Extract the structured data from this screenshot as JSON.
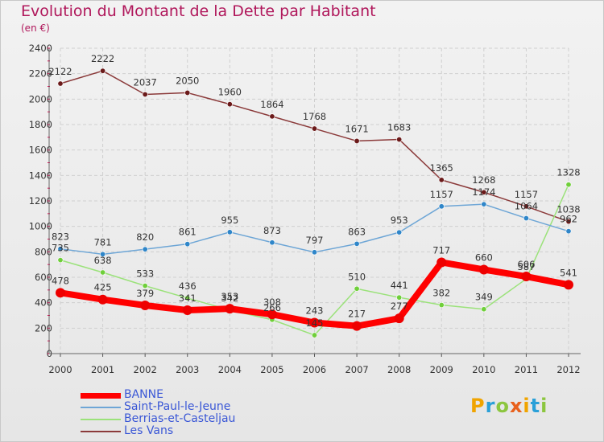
{
  "title": "Evolution du Montant de la Dette par Habitant",
  "subtitle": "(en €)",
  "logo": {
    "letters": [
      "P",
      "r",
      "o",
      "x",
      "i",
      "t",
      "i"
    ],
    "colors": [
      "#f0a400",
      "#2aa0d8",
      "#8cc63f",
      "#e8601c",
      "#f0a400",
      "#2aa0d8",
      "#8cc63f"
    ]
  },
  "colors": {
    "axis_text": "#333333",
    "grid": "#cfcfcf",
    "tick": "#e0004d"
  },
  "chart_data": {
    "type": "line",
    "title": "Evolution du Montant de la Dette par Habitant",
    "subtitle": "(en €)",
    "x": [
      "2000",
      "2001",
      "2002",
      "2003",
      "2004",
      "2005",
      "2006",
      "2007",
      "2008",
      "2009",
      "2010",
      "2011",
      "2012"
    ],
    "ylim": [
      0,
      2400
    ],
    "yticks": [
      0,
      200,
      400,
      600,
      800,
      1000,
      1200,
      1400,
      1600,
      1800,
      2000,
      2200,
      2400
    ],
    "grid": true,
    "legend_position": "bottom-left",
    "series": [
      {
        "name": "BANNE",
        "color": "#ff0000",
        "marker_color": "#ee0000",
        "values": [
          478,
          425,
          379,
          341,
          353,
          308,
          243,
          217,
          277,
          717,
          660,
          606,
          541
        ],
        "labels": [
          "478",
          "425",
          "379",
          "341",
          "353",
          "308",
          "243",
          "217",
          "277",
          "717",
          "660",
          "606",
          "541"
        ]
      },
      {
        "name": "Saint-Paul-le-Jeune",
        "color": "#6ea6d6",
        "marker_color": "#2f86c9",
        "values": [
          823,
          781,
          820,
          861,
          955,
          873,
          797,
          863,
          953,
          1157,
          1174,
          1064,
          962
        ],
        "labels": [
          "823",
          "781",
          "820",
          "861",
          "955",
          "873",
          "797",
          "863",
          "953",
          "1157",
          "1174",
          "1064",
          "962"
        ]
      },
      {
        "name": "Berrias-et-Casteljau",
        "color": "#9be27a",
        "marker_color": "#6fcf3a",
        "values": [
          735,
          638,
          533,
          436,
          342,
          266,
          145,
          510,
          441,
          382,
          349,
          587,
          1328
        ],
        "labels": [
          "735",
          "638",
          "533",
          "436",
          "342",
          "266",
          "145",
          "510",
          "441",
          "382",
          "349",
          "587",
          "1328"
        ]
      },
      {
        "name": "Les Vans",
        "color": "#8b3a3a",
        "marker_color": "#6b1a1a",
        "values": [
          2122,
          2222,
          2037,
          2050,
          1960,
          1864,
          1768,
          1671,
          1683,
          1365,
          1268,
          1157,
          1038
        ],
        "labels": [
          "2122",
          "2222",
          "2037",
          "2050",
          "1960",
          "1864",
          "1768",
          "1671",
          "1683",
          "1365",
          "1268",
          "1157",
          "1038"
        ]
      }
    ]
  }
}
